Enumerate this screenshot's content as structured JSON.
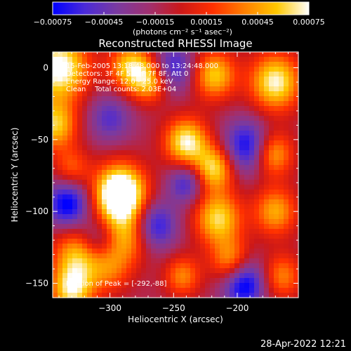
{
  "chart_data": {
    "type": "heatmap",
    "title": "Reconstructed RHESSI Image",
    "xlabel": "Heliocentric X (arcsec)",
    "ylabel": "Heliocentric Y (arcsec)",
    "xlim": [
      -345,
      -152
    ],
    "ylim": [
      -160,
      11
    ],
    "x_ticks": [
      {
        "value": -300,
        "label": "−300"
      },
      {
        "value": -250,
        "label": "−250"
      },
      {
        "value": -200,
        "label": "−200"
      }
    ],
    "y_ticks": [
      {
        "value": 0,
        "label": "0"
      },
      {
        "value": -50,
        "label": "−50"
      },
      {
        "value": -100,
        "label": "−100"
      },
      {
        "value": -150,
        "label": "−150"
      }
    ],
    "colorbar": {
      "min": -0.00075,
      "max": 0.00075,
      "tick_values": [
        -0.00075,
        -0.00045,
        -0.00015,
        0.00015,
        0.00045,
        0.00075
      ],
      "tick_labels": [
        "−0.00075",
        "−0.00045",
        "−0.00015",
        "0.00015",
        "0.00045",
        "0.00075"
      ],
      "units_label": "(photons cm⁻² s⁻¹ asec⁻²)",
      "colors": [
        "#0000ff",
        "#4a2ad8",
        "#7a3aa0",
        "#a03070",
        "#cc1818",
        "#ff3000",
        "#ff8000",
        "#ffc800",
        "#ffffff"
      ]
    },
    "annotations": [
      "15-Feb-2005 13:18:48.000 to 13:24:48.000",
      "Detectors: 3F 4F 5F 6F 7F 8F, Att 0",
      "Energy Range: 12.0 - 25.0 keV",
      "Clean    Total counts: 2.03E+04"
    ],
    "peak_label": "Position of Peak = [-292,-88]",
    "blobs": [
      {
        "x": -292,
        "y": -88,
        "amp": 0.0013,
        "s": 14
      },
      {
        "x": -286,
        "y": -118,
        "amp": 0.00055,
        "s": 13
      },
      {
        "x": -300,
        "y": -140,
        "amp": 0.0004,
        "s": 12
      },
      {
        "x": -340,
        "y": 0,
        "amp": 0.00095,
        "s": 16
      },
      {
        "x": -343,
        "y": -40,
        "amp": 0.0007,
        "s": 12
      },
      {
        "x": -330,
        "y": -70,
        "amp": 0.0004,
        "s": 10
      },
      {
        "x": -325,
        "y": -130,
        "amp": 0.00065,
        "s": 14
      },
      {
        "x": -330,
        "y": -155,
        "amp": 0.00075,
        "s": 12
      },
      {
        "x": -283,
        "y": 0,
        "amp": 0.00075,
        "s": 12
      },
      {
        "x": -268,
        "y": -10,
        "amp": 0.00055,
        "s": 10
      },
      {
        "x": -218,
        "y": -5,
        "amp": 0.0007,
        "s": 12
      },
      {
        "x": -170,
        "y": -10,
        "amp": 0.00085,
        "s": 14
      },
      {
        "x": -240,
        "y": -52,
        "amp": 0.00085,
        "s": 12
      },
      {
        "x": -218,
        "y": -70,
        "amp": 0.00075,
        "s": 11
      },
      {
        "x": -215,
        "y": -105,
        "amp": 0.00075,
        "s": 13
      },
      {
        "x": -205,
        "y": -135,
        "amp": 0.0006,
        "s": 11
      },
      {
        "x": -243,
        "y": -145,
        "amp": 0.0005,
        "s": 10
      },
      {
        "x": -172,
        "y": -60,
        "amp": 0.00065,
        "s": 11
      },
      {
        "x": -170,
        "y": -100,
        "amp": 0.0006,
        "s": 12
      },
      {
        "x": -165,
        "y": -145,
        "amp": 0.0005,
        "s": 11
      },
      {
        "x": -333,
        "y": -95,
        "amp": -0.0007,
        "s": 12
      },
      {
        "x": -265,
        "y": -110,
        "amp": -0.0006,
        "s": 12
      },
      {
        "x": -250,
        "y": 0,
        "amp": -0.0005,
        "s": 12
      },
      {
        "x": -240,
        "y": -80,
        "amp": -0.0005,
        "s": 10
      },
      {
        "x": -192,
        "y": -55,
        "amp": -0.00065,
        "s": 13
      },
      {
        "x": -195,
        "y": -150,
        "amp": -0.00075,
        "s": 12
      },
      {
        "x": -300,
        "y": -35,
        "amp": -0.0004,
        "s": 12
      },
      {
        "x": -310,
        "y": -120,
        "amp": -0.0004,
        "s": 10
      }
    ]
  },
  "footer": {
    "timestamp": "28-Apr-2022 12:21"
  }
}
